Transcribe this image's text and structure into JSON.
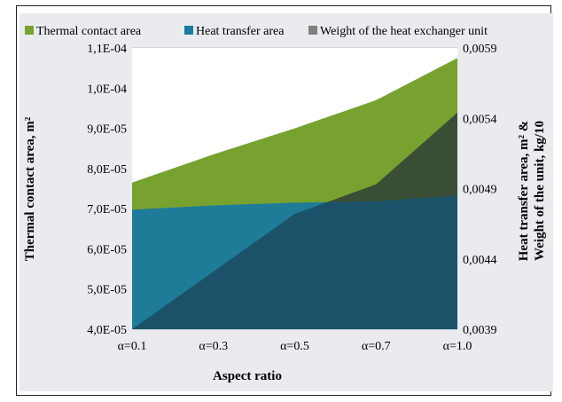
{
  "chart_data": {
    "type": "area",
    "categories": [
      "α=0.1",
      "α=0.3",
      "α=0.5",
      "α=0.7",
      "α=1.0"
    ],
    "xlabel": "Aspect ratio",
    "ylabel": "Thermal contact area, m²",
    "y2label_line1": "Heat transfer area, m²  &",
    "y2label_line2": "Weight of the unit, kg/10",
    "ylim": [
      4e-05,
      0.00011
    ],
    "y2lim": [
      0.0039,
      0.0059
    ],
    "y_ticks": [
      "4,0E-05",
      "5,0E-05",
      "6,0E-05",
      "7,0E-05",
      "8,0E-05",
      "9,0E-05",
      "1,0E-04",
      "1,1E-04"
    ],
    "y_tick_values": [
      4e-05,
      5e-05,
      6e-05,
      7e-05,
      8e-05,
      9e-05,
      0.0001,
      0.00011
    ],
    "y2_ticks": [
      "0,0039",
      "0,0044",
      "0,0049",
      "0,0054",
      "0,0059"
    ],
    "y2_tick_values": [
      0.0039,
      0.0044,
      0.0049,
      0.0054,
      0.0059
    ],
    "grid": true,
    "legend_position": "top",
    "series": [
      {
        "name": "Thermal contact area",
        "axis": "left",
        "color": "#78a22f",
        "values": [
          7.65e-05,
          8.35e-05,
          9e-05,
          9.7e-05,
          0.0001075
        ]
      },
      {
        "name": "Heat transfer area",
        "axis": "right",
        "color": "#1a7a9e",
        "values": [
          0.00475,
          0.00478,
          0.0048,
          0.00481,
          0.00485
        ]
      },
      {
        "name": "Weight of the heat exchanger unit",
        "axis": "right",
        "color": "#7f7f7f",
        "values": [
          0.0039,
          0.00431,
          0.00472,
          0.00493,
          0.00544
        ]
      }
    ]
  }
}
